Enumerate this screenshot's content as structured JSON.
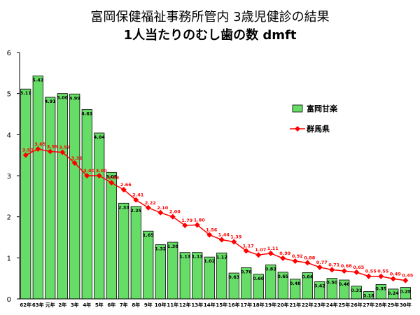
{
  "chart_data": {
    "type": "bar",
    "title": "富岡保健福祉事務所管内 3歳児健診の結果",
    "subtitle": "1人当たりのむし歯の数 dmft",
    "categories": [
      "62年",
      "63年",
      "元年",
      "2年",
      "3年",
      "4年",
      "5年",
      "6年",
      "7年",
      "8年",
      "9年",
      "10年",
      "11年",
      "12年",
      "13年",
      "14年",
      "15年",
      "16年",
      "17年",
      "18年",
      "19年",
      "20年",
      "21年",
      "22年",
      "23年",
      "24年",
      "25年",
      "26年",
      "27年",
      "28年",
      "29年",
      "30年"
    ],
    "ylim": [
      0,
      6
    ],
    "yticks": [
      "0",
      "1",
      "2",
      "3",
      "4",
      "5",
      "6"
    ],
    "grid": false,
    "legend_position": "right",
    "series": [
      {
        "name": "富岡甘楽",
        "type": "bar",
        "color": "#66dd66",
        "values": [
          5.11,
          5.43,
          4.91,
          5.0,
          4.99,
          4.61,
          4.04,
          3.08,
          2.33,
          2.25,
          1.65,
          1.32,
          1.38,
          1.13,
          1.13,
          1.02,
          1.12,
          0.63,
          0.76,
          0.6,
          0.83,
          0.65,
          0.48,
          0.64,
          0.42,
          0.5,
          0.46,
          0.31,
          0.18,
          0.35,
          0.24,
          0.28
        ],
        "labels": [
          "5.11",
          "5.43",
          "4.91",
          "5.00",
          "4.99",
          "4.61",
          "4.04",
          "3.08",
          "2.33",
          "2.25",
          "1.65",
          "1.32",
          "1.38",
          "1.13",
          "1.13",
          "1.02",
          "1.12",
          "0.63",
          "0.76",
          "0.60",
          "0.83",
          "0.65",
          "0.48",
          "0.64",
          "0.42",
          "0.50",
          "0.46",
          "0.31",
          "0.18",
          "0.35",
          "0.24",
          "0.28"
        ]
      },
      {
        "name": "群馬県",
        "type": "line",
        "color": "#ff0000",
        "values": [
          3.5,
          3.65,
          3.59,
          3.57,
          3.31,
          3.0,
          3.0,
          2.83,
          2.66,
          2.41,
          2.22,
          2.1,
          2.0,
          1.79,
          1.8,
          1.56,
          1.44,
          1.39,
          1.17,
          1.07,
          1.11,
          0.99,
          0.92,
          0.88,
          0.77,
          0.71,
          0.68,
          0.65,
          0.55,
          0.55,
          0.49,
          0.45
        ],
        "labels": [
          "3.50",
          "3.65",
          "3.59",
          "3.57",
          "3.31",
          "3.00",
          "3.00",
          "2.83",
          "2.66",
          "2.41",
          "2.22",
          "2.10",
          "2.00",
          "1.79",
          "1.80",
          "1.56",
          "1.44",
          "1.39",
          "1.17",
          "1.07",
          "1.11",
          "0.99",
          "0.92",
          "0.88",
          "0.77",
          "0.71",
          "0.68",
          "0.65",
          "0.55",
          "0.55",
          "0.49",
          "0.45"
        ]
      }
    ]
  }
}
